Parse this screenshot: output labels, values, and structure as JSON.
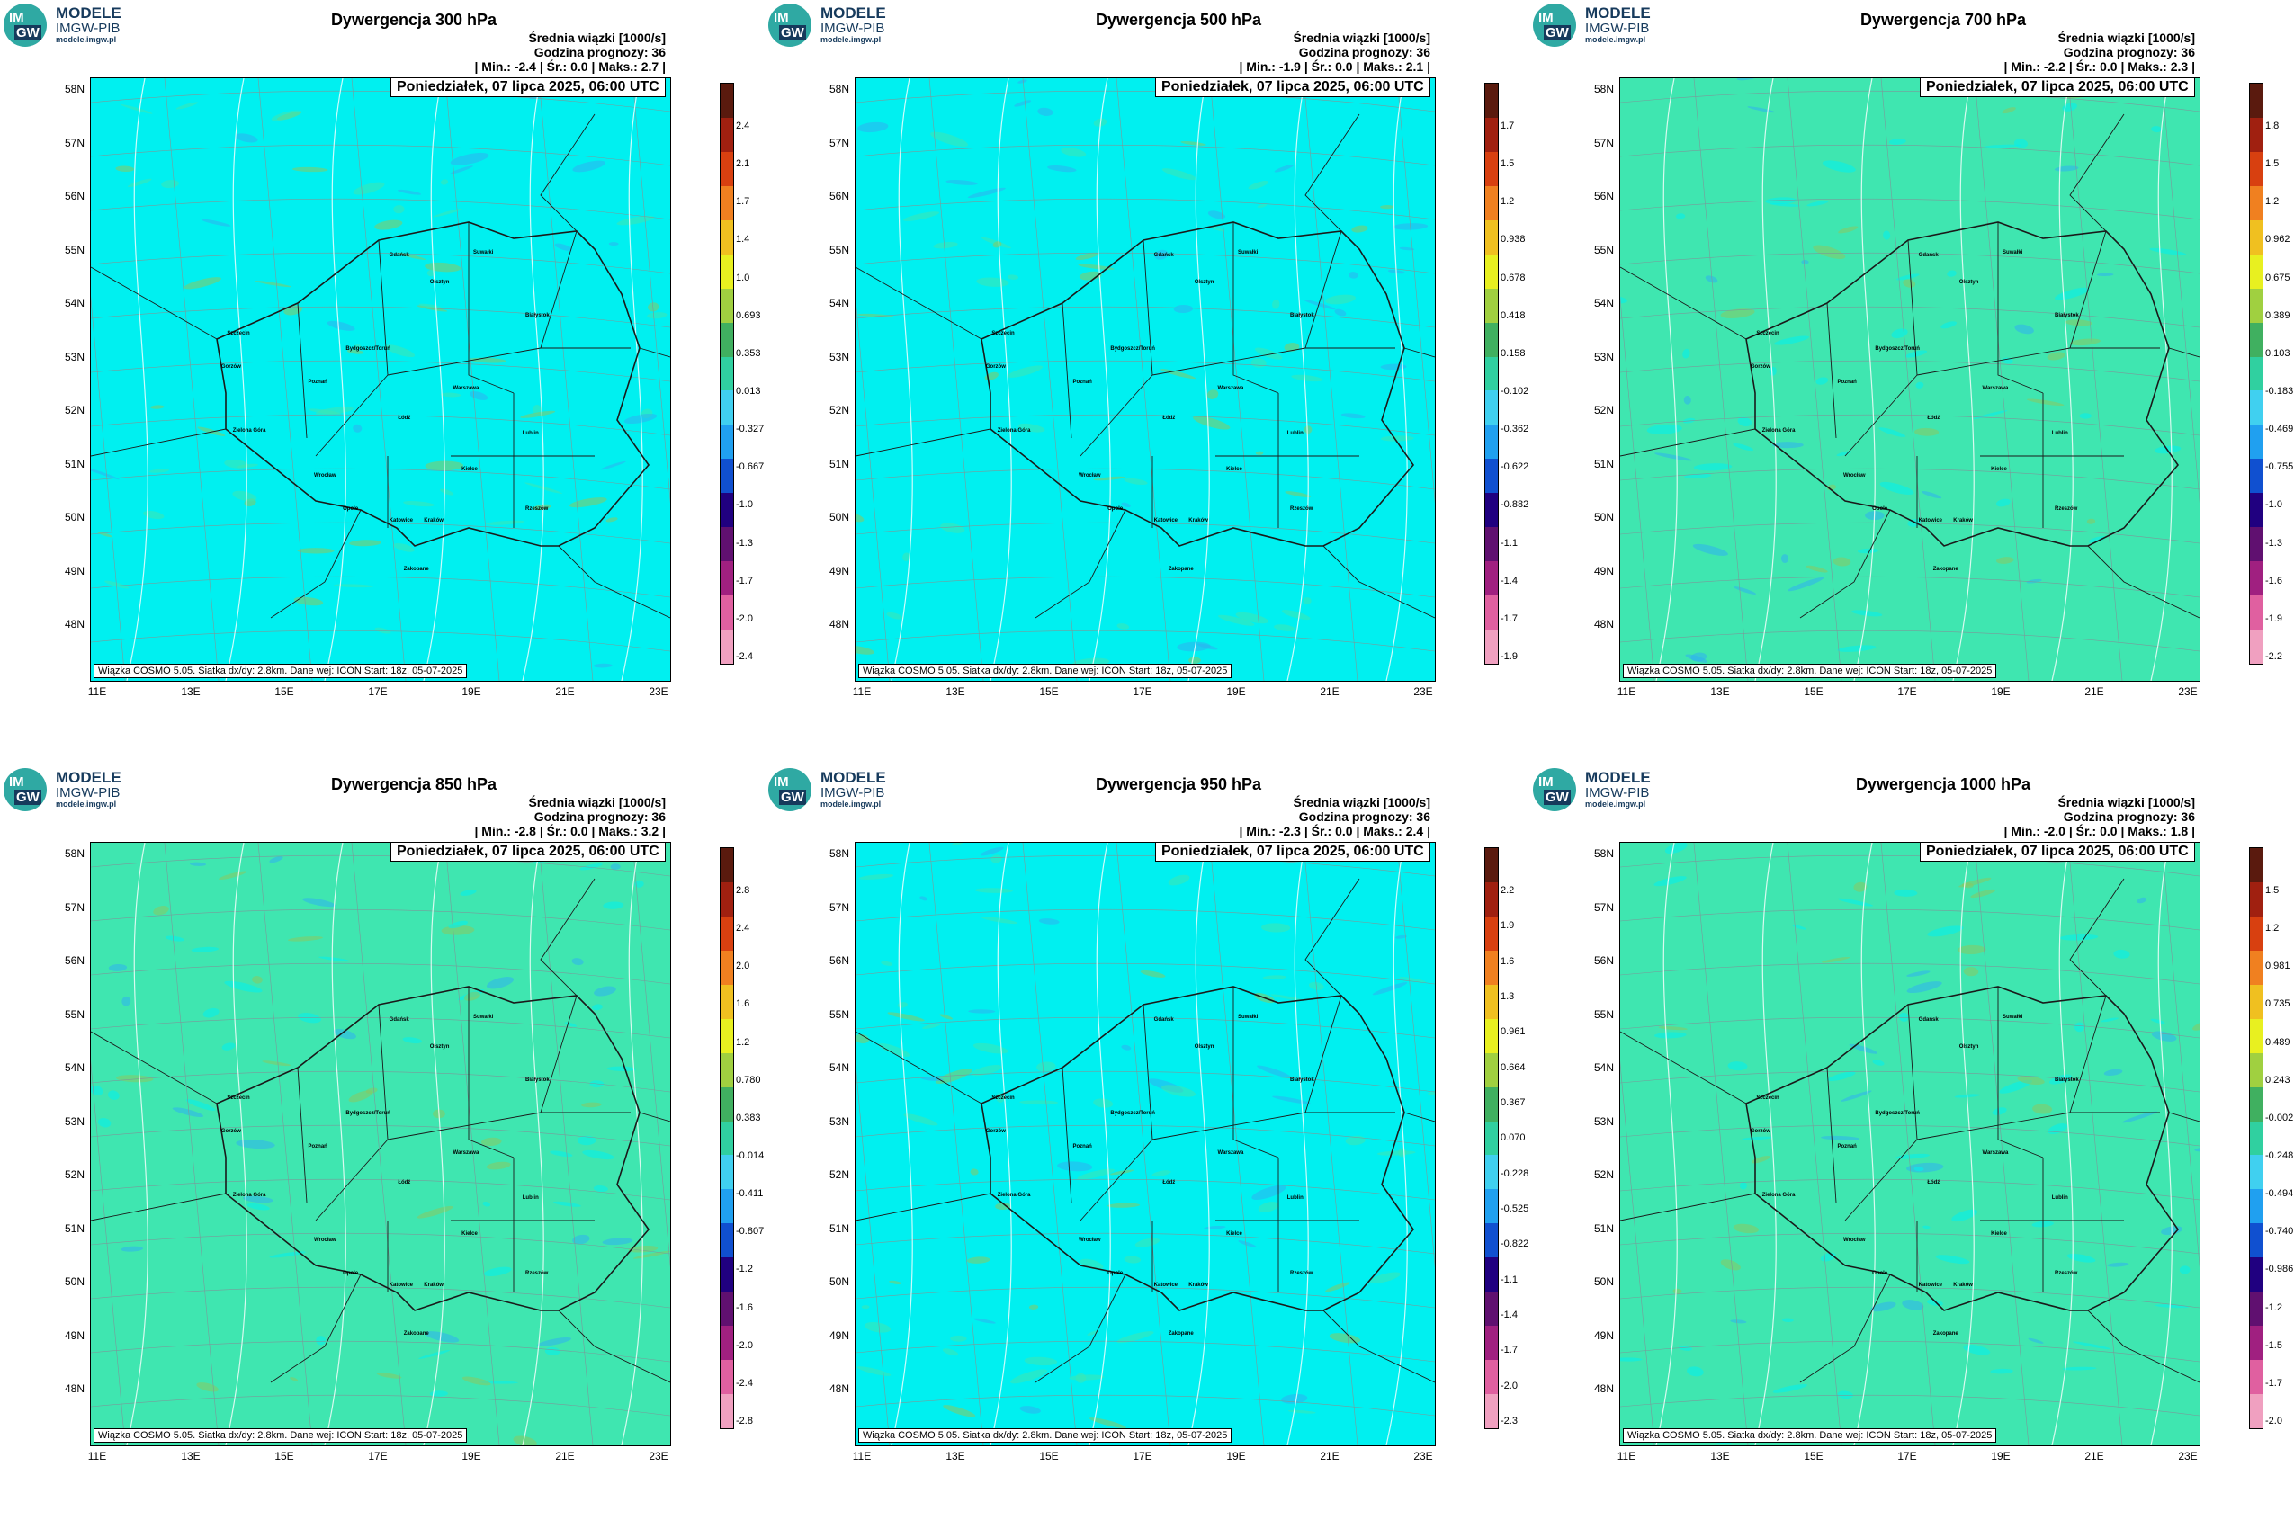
{
  "logo": {
    "line1": "MODELE",
    "line2": "IMGW-PIB",
    "line3": "modele.imgw.pl",
    "badge_top": "IM",
    "badge_bottom": "GW"
  },
  "common": {
    "subtitle": "Średnia wiązki [1000/s]",
    "forecast_hour_label": "Godzina prognozy: 36",
    "date_label": "Poniedziałek, 07 lipca 2025, 06:00 UTC",
    "footer": "Wiązka COSMO 5.05. Siatka dx/dy: 2.8km. Dane wej: ICON Start: 18z, 05-07-2025",
    "min_label": "Min.:",
    "avg_label": "Śr.:",
    "max_label": "Maks.:",
    "lat_labels": [
      "58N",
      "57N",
      "56N",
      "55N",
      "54N",
      "53N",
      "52N",
      "51N",
      "50N",
      "49N",
      "48N"
    ],
    "lon_labels": [
      "11E",
      "13E",
      "15E",
      "17E",
      "19E",
      "21E",
      "23E"
    ],
    "cities": [
      "Gdańsk",
      "Olsztyn",
      "Suwałki",
      "Szczecin",
      "Bydgoszcz/Toruń",
      "Białystok",
      "Gorzów",
      "Poznań",
      "Warszawa",
      "Łódź",
      "Zielona Góra",
      "Lublin",
      "Wrocław",
      "Kielce",
      "Opole",
      "Rzeszów",
      "Katowice",
      "Kraków",
      "Zakopane"
    ]
  },
  "colors": {
    "cyan": "#00f0f0",
    "teal": "#3fe6b0",
    "border": "#1a1a1a"
  },
  "panels": [
    {
      "title": "Dywergencja 300 hPa",
      "min": "-2.4",
      "avg": "0.0",
      "max": "2.7",
      "bg": "cyan",
      "colorbar": [
        "2.4",
        "2.1",
        "1.7",
        "1.4",
        "1.0",
        "0.693",
        "0.353",
        "0.013",
        "-0.327",
        "-0.667",
        "-1.0",
        "-1.3",
        "-1.7",
        "-2.0",
        "-2.4"
      ]
    },
    {
      "title": "Dywergencja 500 hPa",
      "min": "-1.9",
      "avg": "0.0",
      "max": "2.1",
      "bg": "cyan",
      "colorbar": [
        "1.7",
        "1.5",
        "1.2",
        "0.938",
        "0.678",
        "0.418",
        "0.158",
        "-0.102",
        "-0.362",
        "-0.622",
        "-0.882",
        "-1.1",
        "-1.4",
        "-1.7",
        "-1.9"
      ]
    },
    {
      "title": "Dywergencja 700 hPa",
      "min": "-2.2",
      "avg": "0.0",
      "max": "2.3",
      "bg": "teal",
      "colorbar": [
        "1.8",
        "1.5",
        "1.2",
        "0.962",
        "0.675",
        "0.389",
        "0.103",
        "-0.183",
        "-0.469",
        "-0.755",
        "-1.0",
        "-1.3",
        "-1.6",
        "-1.9",
        "-2.2"
      ]
    },
    {
      "title": "Dywergencja 850 hPa",
      "min": "-2.8",
      "avg": "0.0",
      "max": "3.2",
      "bg": "teal",
      "colorbar": [
        "2.8",
        "2.4",
        "2.0",
        "1.6",
        "1.2",
        "0.780",
        "0.383",
        "-0.014",
        "-0.411",
        "-0.807",
        "-1.2",
        "-1.6",
        "-2.0",
        "-2.4",
        "-2.8"
      ]
    },
    {
      "title": "Dywergencja 950 hPa",
      "min": "-2.3",
      "avg": "0.0",
      "max": "2.4",
      "bg": "cyan",
      "colorbar": [
        "2.2",
        "1.9",
        "1.6",
        "1.3",
        "0.961",
        "0.664",
        "0.367",
        "0.070",
        "-0.228",
        "-0.525",
        "-0.822",
        "-1.1",
        "-1.4",
        "-1.7",
        "-2.0",
        "-2.3"
      ]
    },
    {
      "title": "Dywergencja 1000 hPa",
      "min": "-2.0",
      "avg": "0.0",
      "max": "1.8",
      "bg": "teal",
      "colorbar": [
        "1.5",
        "1.2",
        "0.981",
        "0.735",
        "0.489",
        "0.243",
        "-0.002",
        "-0.248",
        "-0.494",
        "-0.740",
        "-0.986",
        "-1.2",
        "-1.5",
        "-1.7",
        "-2.0"
      ]
    }
  ]
}
